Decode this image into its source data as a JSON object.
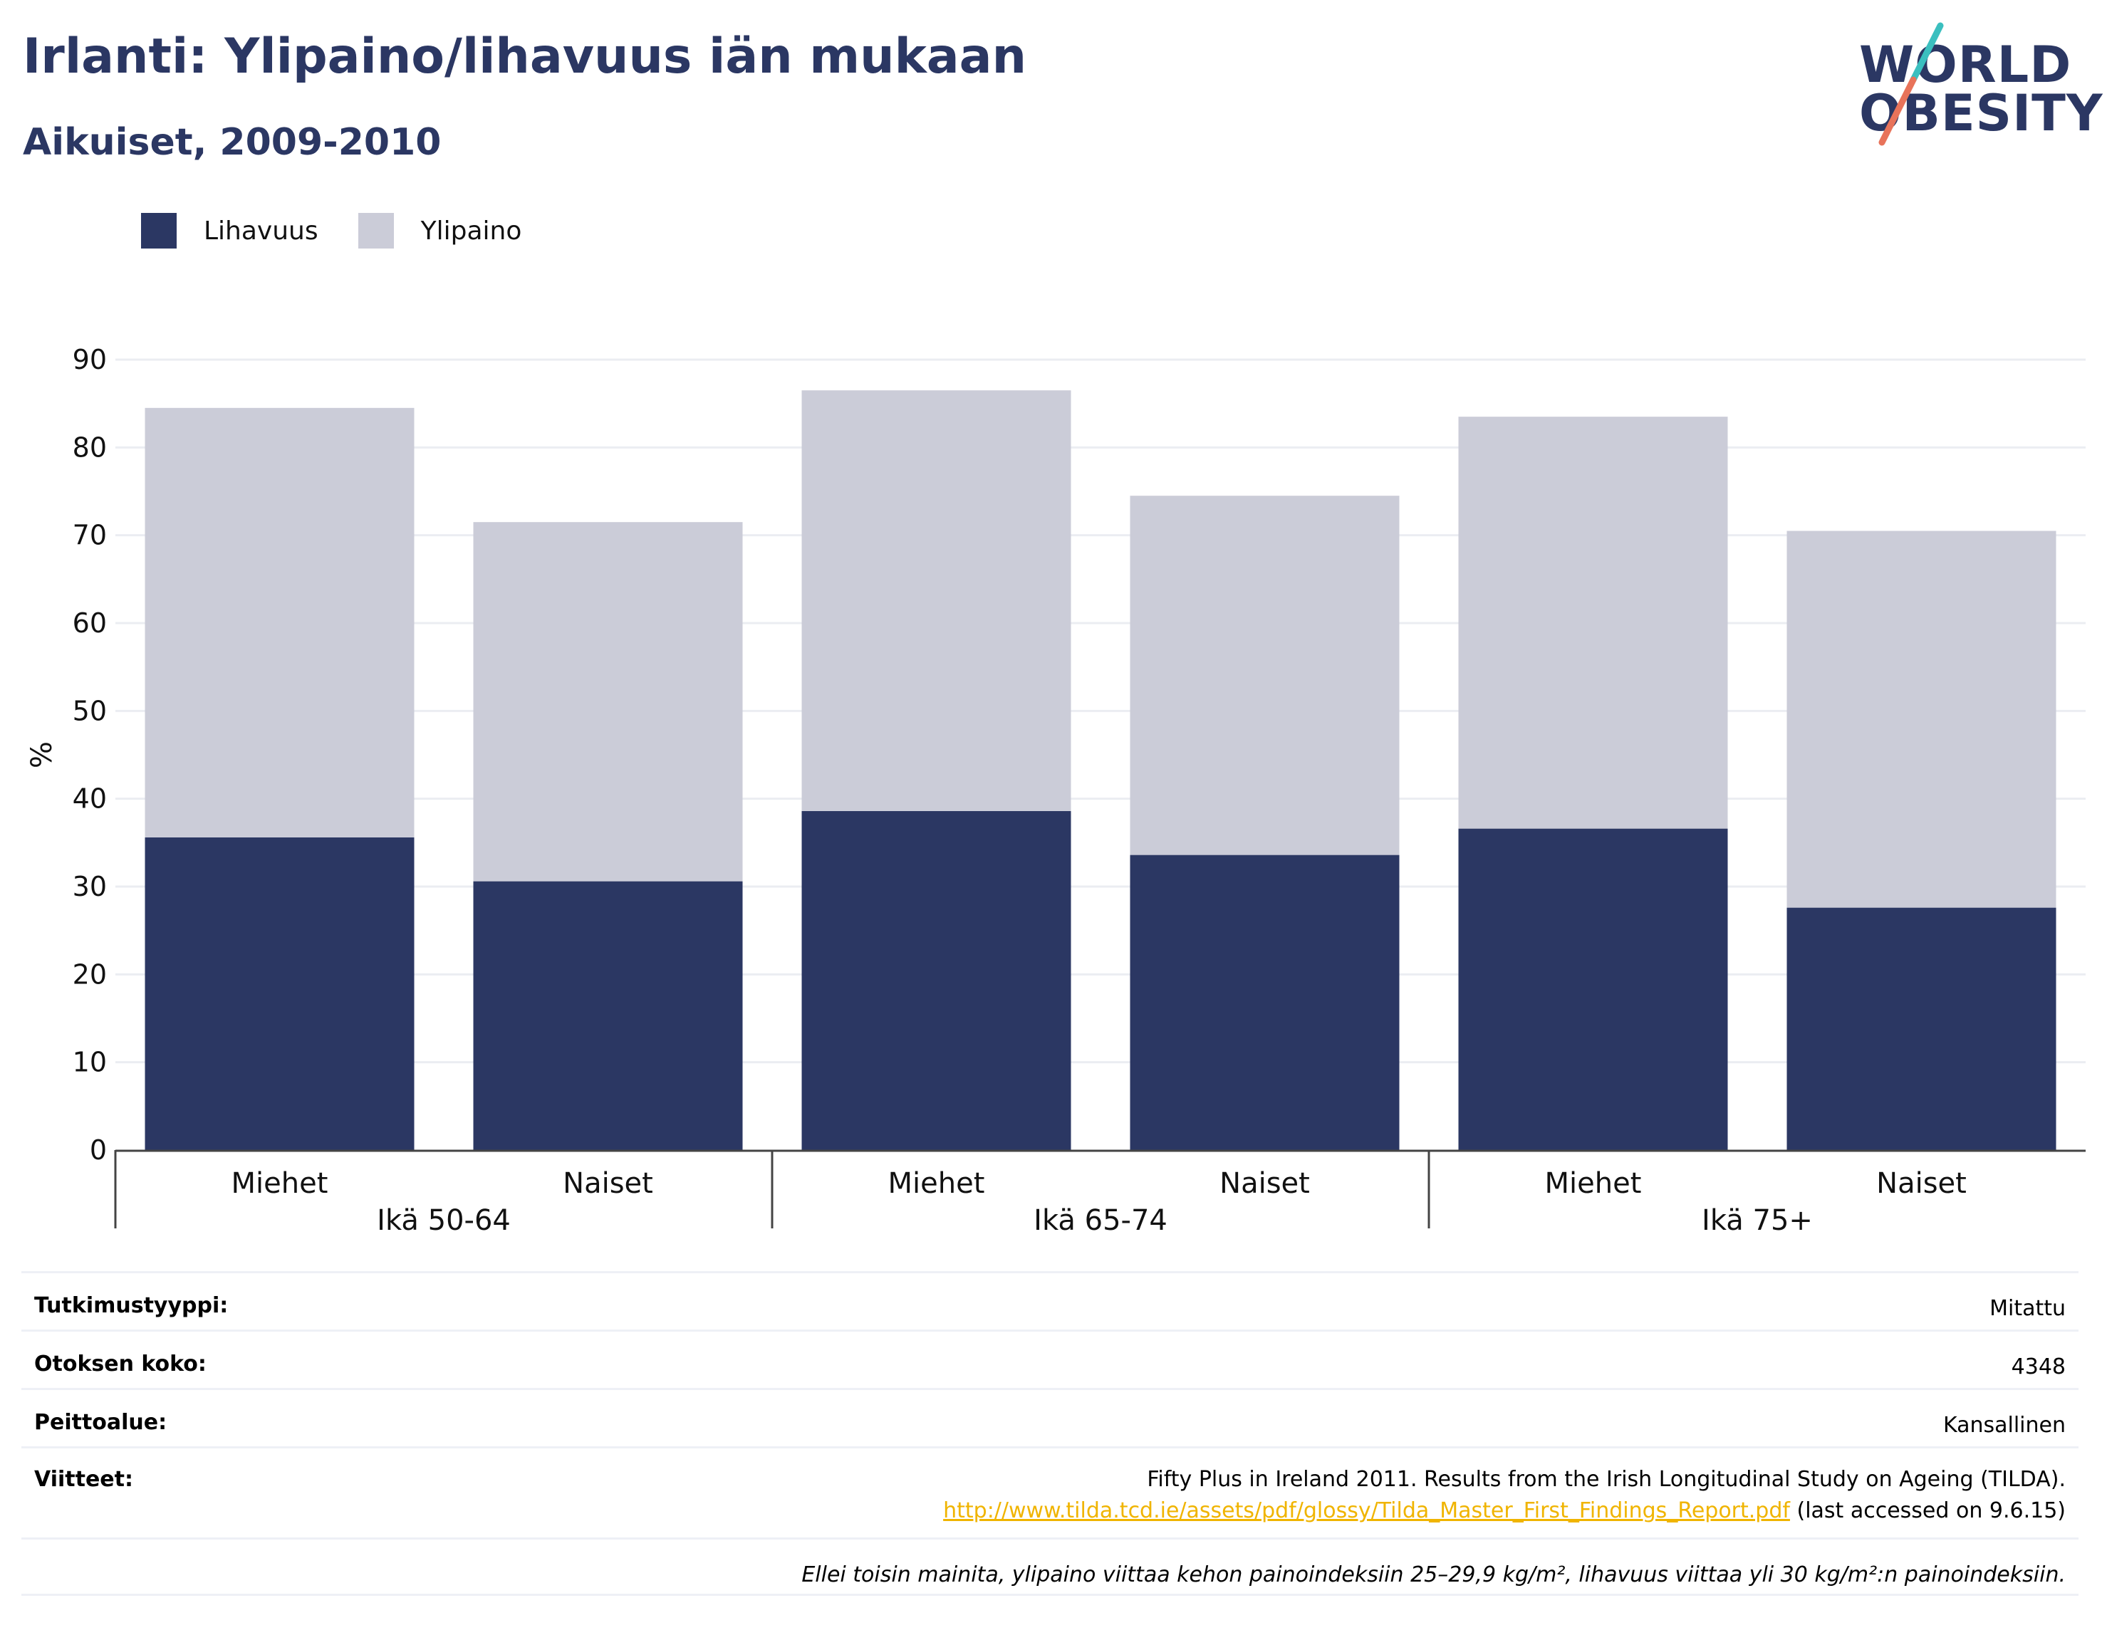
{
  "header": {
    "title": "Irlanti: Ylipaino/lihavuus iän mukaan",
    "subtitle": "Aikuiset, 2009-2010"
  },
  "logo": {
    "line1": "WORLD",
    "line2": "OBESITY",
    "colors": {
      "text": "#2b3763",
      "slash_top": "#3bbfbf",
      "slash_bottom": "#e8735a"
    }
  },
  "legend": {
    "items": [
      {
        "label": "Lihavuus",
        "color": "#2b3763"
      },
      {
        "label": "Ylipaino",
        "color": "#cbccd8"
      }
    ]
  },
  "chart_data": {
    "type": "bar",
    "stacked": true,
    "ylabel": "%",
    "ylim": [
      0,
      90
    ],
    "yticks": [
      0,
      10,
      20,
      30,
      40,
      50,
      60,
      70,
      80,
      90
    ],
    "grid": true,
    "legend_position": "top-left",
    "groups": [
      "Ikä 50-64",
      "Ikä 65-74",
      "Ikä 75+"
    ],
    "categories": [
      "Miehet",
      "Naiset",
      "Miehet",
      "Naiset",
      "Miehet",
      "Naiset"
    ],
    "series": [
      {
        "name": "Lihavuus",
        "color": "#2b3763",
        "values": [
          35.6,
          30.6,
          38.6,
          33.6,
          36.6,
          27.6
        ]
      },
      {
        "name": "Ylipaino",
        "color": "#cbccd8",
        "values": [
          48.9,
          40.9,
          47.9,
          40.9,
          46.9,
          42.9
        ]
      }
    ]
  },
  "info": {
    "rows": [
      {
        "key": "Tutkimustyyppi:",
        "value": "Mitattu"
      },
      {
        "key": "Otoksen koko:",
        "value": "4348"
      },
      {
        "key": "Peittoalue:",
        "value": "Kansallinen"
      }
    ],
    "references": {
      "key": "Viitteet:",
      "text": "Fifty Plus in Ireland 2011. Results from the Irish Longitudinal Study on Ageing (TILDA).",
      "link": "http://www.tilda.tcd.ie/assets/pdf/glossy/Tilda_Master_First_Findings_Report.pdf",
      "after_link": " (last accessed on 9.6.15)"
    },
    "footnote": "Ellei toisin mainita, ylipaino viittaa kehon painoindeksiin 25–29,9 kg/m², lihavuus viittaa yli 30 kg/m²:n painoindeksiin."
  }
}
